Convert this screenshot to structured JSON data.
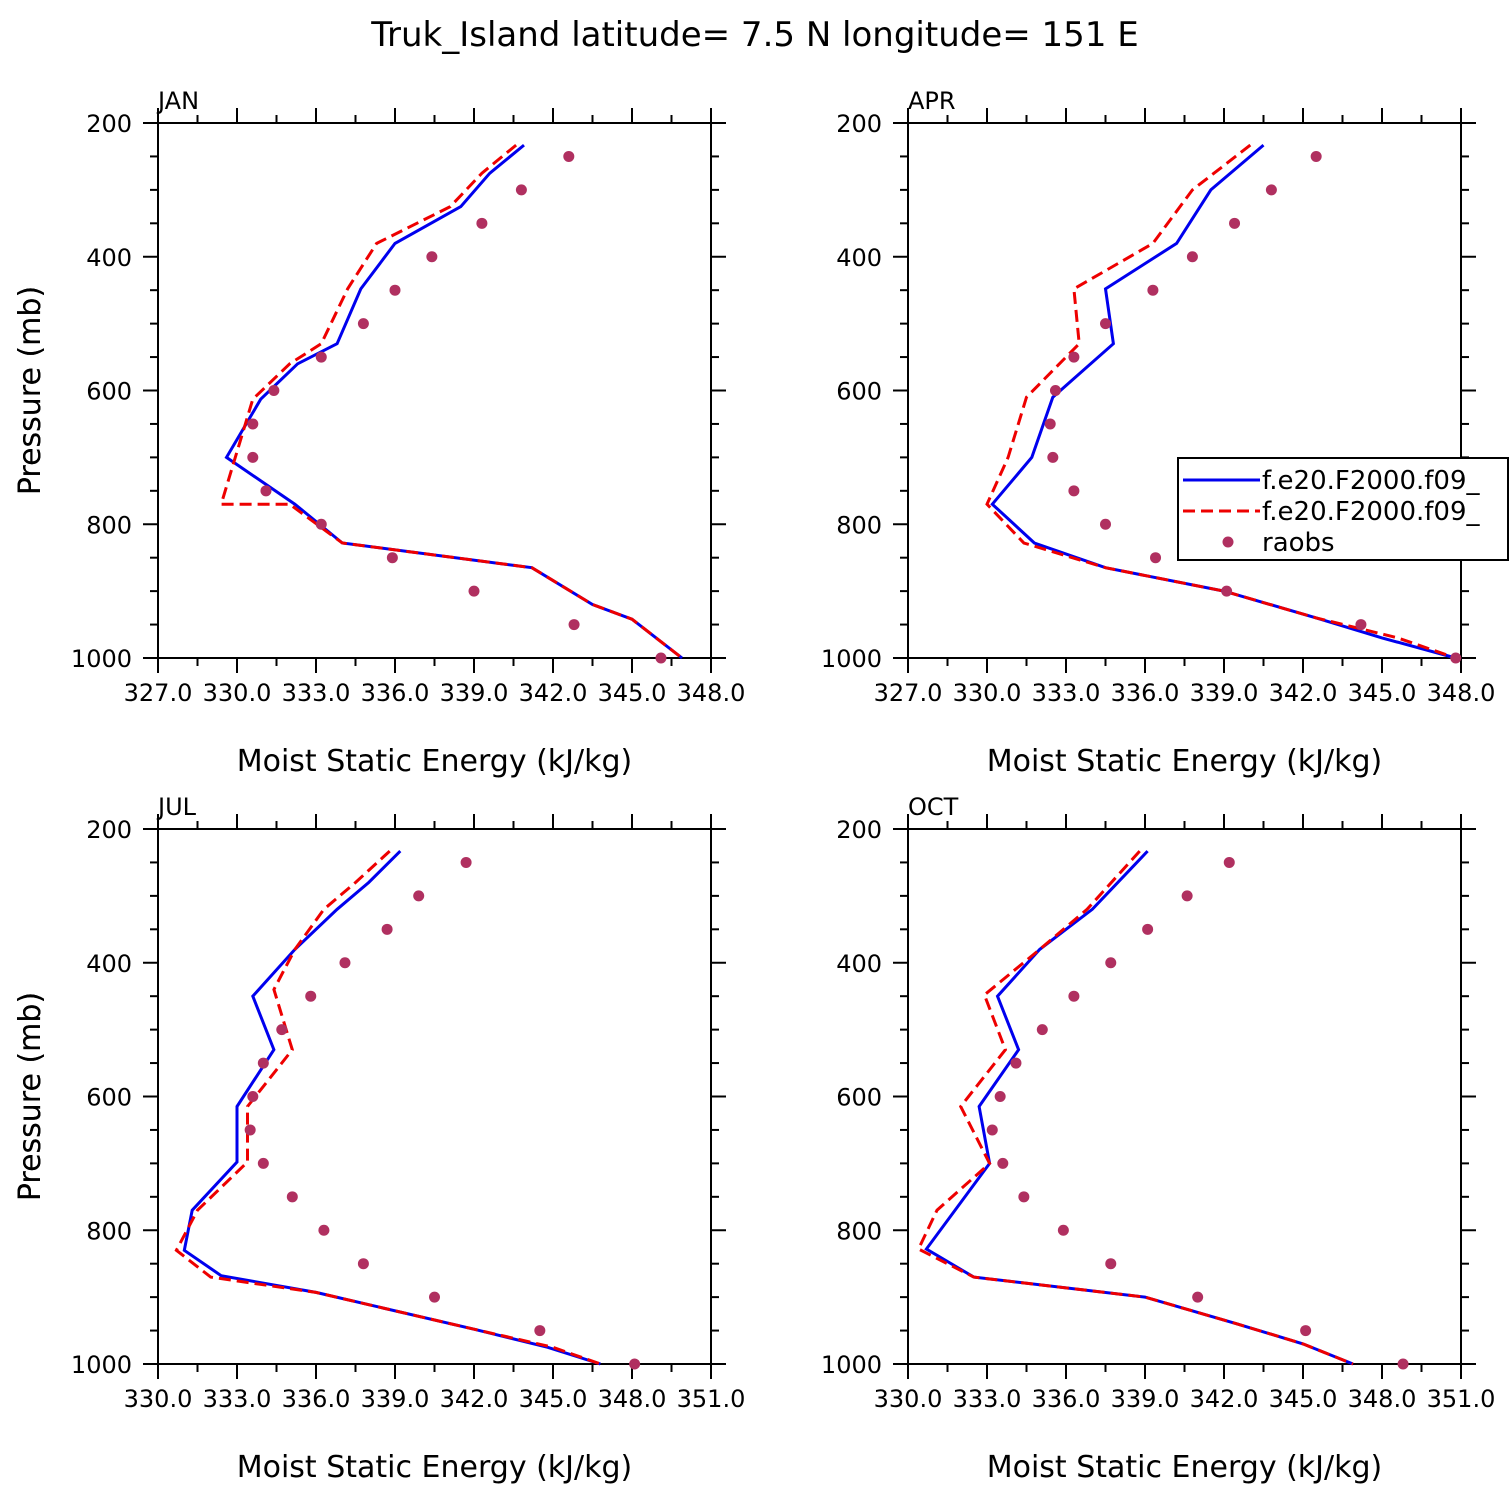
{
  "figure_title": "Truk_Island  latitude= 7.5 N longitude= 151 E",
  "colors": {
    "model1": "#0000ee",
    "model2": "#ee0000",
    "obs": "#b03060",
    "axis": "#000000"
  },
  "legend": {
    "entries": [
      {
        "label": "f.e20.F2000.f09_",
        "style": "solid"
      },
      {
        "label": "f.e20.F2000.f09_",
        "style": "dashed"
      },
      {
        "label": "raobs",
        "style": "dot"
      }
    ]
  },
  "chart_data": [
    {
      "type": "line",
      "panel": "JAN",
      "title": "JAN",
      "xlabel": "Moist Static Energy (kJ/kg)",
      "ylabel": "Pressure (mb)",
      "xlim": [
        327.0,
        348.0
      ],
      "ylim": [
        1000,
        200
      ],
      "xticks": [
        327.0,
        330.0,
        333.0,
        336.0,
        339.0,
        342.0,
        345.0,
        348.0
      ],
      "xtick_labels": [
        "327.0",
        "330.0",
        "333.0",
        "336.0",
        "339.0",
        "342.0",
        "345.0",
        "348.0"
      ],
      "yticks": [
        200,
        400,
        600,
        800,
        1000
      ],
      "ytick_labels": [
        "200",
        "400",
        "600",
        "800",
        "1000"
      ],
      "series": [
        {
          "name": "f.e20.F2000.f09_",
          "style": "solid",
          "x": [
            340.9,
            339.6,
            338.5,
            336.0,
            334.7,
            333.8,
            332.3,
            330.9,
            329.6,
            332.2,
            334.0,
            341.2,
            343.5,
            345.0,
            346.9
          ],
          "y": [
            233,
            275,
            325,
            380,
            448,
            530,
            560,
            613,
            700,
            770,
            828,
            865,
            920,
            942,
            1000
          ]
        },
        {
          "name": "f.e20.F2000.f09_",
          "style": "dashed",
          "x": [
            340.6,
            339.3,
            338.1,
            335.3,
            334.2,
            333.2,
            332.0,
            330.6,
            329.4,
            332.0,
            334.0,
            341.2,
            343.5,
            345.0,
            346.9
          ],
          "y": [
            233,
            275,
            325,
            380,
            448,
            530,
            560,
            613,
            770,
            770,
            828,
            865,
            920,
            942,
            1000
          ]
        },
        {
          "name": "raobs",
          "style": "dot",
          "x": [
            342.6,
            340.8,
            339.3,
            337.4,
            336.0,
            334.8,
            333.2,
            331.4,
            330.6,
            330.6,
            331.1,
            333.2,
            335.9,
            339.0,
            342.8,
            346.1
          ],
          "y": [
            250,
            300,
            350,
            400,
            450,
            500,
            550,
            600,
            650,
            700,
            750,
            800,
            850,
            900,
            950,
            1000
          ]
        }
      ]
    },
    {
      "type": "line",
      "panel": "APR",
      "title": "APR",
      "xlabel": "Moist Static Energy (kJ/kg)",
      "ylabel": "Pressure (mb)",
      "xlim": [
        327.0,
        348.0
      ],
      "ylim": [
        1000,
        200
      ],
      "xticks": [
        327.0,
        330.0,
        333.0,
        336.0,
        339.0,
        342.0,
        345.0,
        348.0
      ],
      "xtick_labels": [
        "327.0",
        "330.0",
        "333.0",
        "336.0",
        "339.0",
        "342.0",
        "345.0",
        "348.0"
      ],
      "yticks": [
        200,
        400,
        600,
        800,
        1000
      ],
      "ytick_labels": [
        "200",
        "400",
        "600",
        "800",
        "1000"
      ],
      "series": [
        {
          "name": "f.e20.F2000.f09_",
          "style": "solid",
          "x": [
            340.5,
            338.5,
            337.2,
            334.5,
            334.8,
            332.5,
            331.7,
            330.2,
            331.8,
            334.5,
            339.0,
            342.5,
            345.0,
            347.8
          ],
          "y": [
            233,
            300,
            380,
            448,
            530,
            610,
            700,
            770,
            828,
            865,
            900,
            940,
            970,
            1000
          ]
        },
        {
          "name": "f.e20.F2000.f09_",
          "style": "dashed",
          "x": [
            340.0,
            337.8,
            336.3,
            333.3,
            333.5,
            331.5,
            330.8,
            330.0,
            331.4,
            334.5,
            339.0,
            342.5,
            345.6,
            347.8
          ],
          "y": [
            233,
            300,
            380,
            448,
            530,
            610,
            700,
            770,
            828,
            865,
            900,
            940,
            970,
            1000
          ]
        },
        {
          "name": "raobs",
          "style": "dot",
          "x": [
            342.5,
            340.8,
            339.4,
            337.8,
            336.3,
            334.5,
            333.3,
            332.6,
            332.4,
            332.5,
            333.3,
            334.5,
            336.4,
            339.1,
            344.2,
            347.8
          ],
          "y": [
            250,
            300,
            350,
            400,
            450,
            500,
            550,
            600,
            650,
            700,
            750,
            800,
            850,
            900,
            950,
            1000
          ]
        }
      ]
    },
    {
      "type": "line",
      "panel": "JUL",
      "title": "JUL",
      "xlabel": "Moist Static Energy (kJ/kg)",
      "ylabel": "Pressure (mb)",
      "xlim": [
        330.0,
        351.0
      ],
      "ylim": [
        1000,
        200
      ],
      "xticks": [
        330.0,
        333.0,
        336.0,
        339.0,
        342.0,
        345.0,
        348.0,
        351.0
      ],
      "xtick_labels": [
        "330.0",
        "333.0",
        "336.0",
        "339.0",
        "342.0",
        "345.0",
        "348.0",
        "351.0"
      ],
      "yticks": [
        200,
        400,
        600,
        800,
        1000
      ],
      "ytick_labels": [
        "200",
        "400",
        "600",
        "800",
        "1000"
      ],
      "series": [
        {
          "name": "f.e20.F2000.f09_",
          "style": "solid",
          "x": [
            339.2,
            338.0,
            336.8,
            335.2,
            333.6,
            334.4,
            333.0,
            333.0,
            331.3,
            331.0,
            332.4,
            336.0,
            342.0,
            344.8,
            346.8
          ],
          "y": [
            233,
            280,
            320,
            380,
            450,
            530,
            615,
            698,
            770,
            830,
            868,
            893,
            948,
            975,
            1000
          ]
        },
        {
          "name": "f.e20.F2000.f09_",
          "style": "dashed",
          "x": [
            338.8,
            337.5,
            336.3,
            335.2,
            334.4,
            335.1,
            333.4,
            333.4,
            331.5,
            330.7,
            332.0,
            336.0,
            342.0,
            345.0,
            346.8
          ],
          "y": [
            233,
            280,
            320,
            380,
            440,
            530,
            615,
            698,
            770,
            830,
            870,
            893,
            948,
            975,
            1000
          ]
        },
        {
          "name": "raobs",
          "style": "dot",
          "x": [
            341.7,
            339.9,
            338.7,
            337.1,
            335.8,
            334.7,
            334.0,
            333.6,
            333.5,
            334.0,
            335.1,
            336.3,
            337.8,
            340.5,
            344.5,
            348.1
          ],
          "y": [
            250,
            300,
            350,
            400,
            450,
            500,
            550,
            600,
            650,
            700,
            750,
            800,
            850,
            900,
            950,
            1000
          ]
        }
      ]
    },
    {
      "type": "line",
      "panel": "OCT",
      "title": "OCT",
      "xlabel": "Moist Static Energy (kJ/kg)",
      "ylabel": "Pressure (mb)",
      "xlim": [
        330.0,
        351.0
      ],
      "ylim": [
        1000,
        200
      ],
      "xticks": [
        330.0,
        333.0,
        336.0,
        339.0,
        342.0,
        345.0,
        348.0,
        351.0
      ],
      "xtick_labels": [
        "330.0",
        "333.0",
        "336.0",
        "339.0",
        "342.0",
        "345.0",
        "348.0",
        "351.0"
      ],
      "yticks": [
        200,
        400,
        600,
        800,
        1000
      ],
      "ytick_labels": [
        "200",
        "400",
        "600",
        "800",
        "1000"
      ],
      "series": [
        {
          "name": "f.e20.F2000.f09_",
          "style": "solid",
          "x": [
            339.1,
            337.0,
            335.0,
            333.4,
            334.2,
            332.7,
            333.1,
            330.7,
            332.5,
            339.0,
            342.5,
            345.0,
            346.9
          ],
          "y": [
            233,
            320,
            380,
            450,
            530,
            615,
            700,
            828,
            870,
            900,
            940,
            970,
            1000
          ]
        },
        {
          "name": "f.e20.F2000.f09_",
          "style": "dashed",
          "x": [
            338.8,
            336.8,
            335.0,
            332.9,
            333.7,
            332.0,
            333.1,
            331.1,
            330.4,
            332.5,
            339.0,
            342.5,
            345.0,
            346.9
          ],
          "y": [
            233,
            320,
            380,
            448,
            530,
            615,
            700,
            770,
            828,
            870,
            900,
            940,
            970,
            1000
          ]
        },
        {
          "name": "raobs",
          "style": "dot",
          "x": [
            342.2,
            340.6,
            339.1,
            337.7,
            336.3,
            335.1,
            334.1,
            333.5,
            333.2,
            333.6,
            334.4,
            335.9,
            337.7,
            341.0,
            345.1,
            348.8
          ],
          "y": [
            250,
            300,
            350,
            400,
            450,
            500,
            550,
            600,
            650,
            700,
            750,
            800,
            850,
            900,
            950,
            1000
          ]
        }
      ]
    }
  ]
}
